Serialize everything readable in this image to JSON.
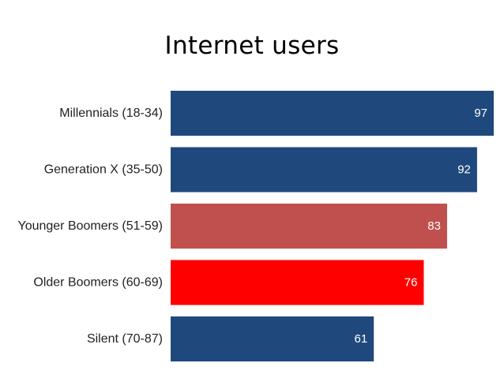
{
  "chart_data": {
    "type": "bar",
    "orientation": "horizontal",
    "title": "Internet users",
    "xlabel": "",
    "ylabel": "",
    "categories": [
      "Millennials (18-34)",
      "Generation X (35-50)",
      "Younger Boomers (51-59)",
      "Older Boomers (60-69)",
      "Silent (70-87)"
    ],
    "values": [
      97,
      92,
      83,
      76,
      61
    ],
    "bar_colors": [
      "#1f497d",
      "#1f497d",
      "#c0504d",
      "#ff0000",
      "#1f497d"
    ],
    "xlim": [
      0,
      97
    ],
    "grid": false,
    "legend": "none",
    "data_labels": true,
    "value_label_color": "#ffffff"
  }
}
